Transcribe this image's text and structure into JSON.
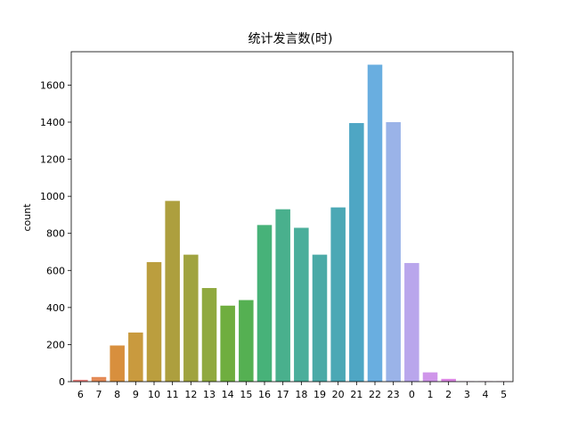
{
  "chart_data": {
    "type": "bar",
    "title": "统计发言数(时)",
    "xlabel": "",
    "ylabel": "count",
    "categories": [
      "6",
      "7",
      "8",
      "9",
      "10",
      "11",
      "12",
      "13",
      "14",
      "15",
      "16",
      "17",
      "18",
      "19",
      "20",
      "21",
      "22",
      "23",
      "0",
      "1",
      "2",
      "3",
      "4",
      "5"
    ],
    "values": [
      10,
      25,
      195,
      265,
      645,
      975,
      685,
      505,
      410,
      440,
      845,
      930,
      830,
      685,
      940,
      1395,
      1710,
      1400,
      640,
      50,
      15,
      2,
      2,
      2
    ],
    "colors": [
      "#e8807d",
      "#e48a56",
      "#d88f3d",
      "#c99a3e",
      "#bb9e3e",
      "#ad9f3e",
      "#a0a33f",
      "#90a93f",
      "#6fae3f",
      "#55b052",
      "#47b279",
      "#49b08d",
      "#4aae9b",
      "#4baaa7",
      "#4ba8b5",
      "#4ea6c4",
      "#69aee0",
      "#9ab3e8",
      "#b9a6ec",
      "#cf96ea",
      "#dc86e4",
      "#e27ed8",
      "#e67bc3",
      "#e97daf"
    ],
    "ylim": [
      0,
      1780
    ],
    "yticks": [
      0,
      200,
      400,
      600,
      800,
      1000,
      1200,
      1400,
      1600
    ],
    "grid": false
  }
}
